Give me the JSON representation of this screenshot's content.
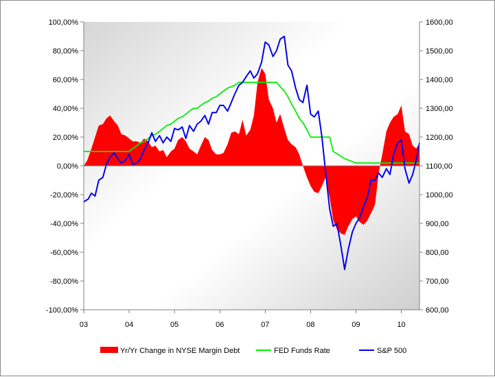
{
  "chart_data": {
    "type": "area+line",
    "title": "",
    "xlabel": "",
    "ylabel": "",
    "x_tick_labels": [
      "03",
      "04",
      "05",
      "06",
      "07",
      "08",
      "09",
      "10"
    ],
    "x_range": [
      2003.0,
      2010.4
    ],
    "y_left": {
      "range": [
        -100,
        100
      ],
      "step": 20,
      "tick_labels": [
        "100,00%",
        "80,00%",
        "60,00%",
        "40,00%",
        "20,00%",
        "0,00%",
        "-20,00%",
        "-40,00%",
        "-60,00%",
        "-80,00%",
        "-100,00%"
      ]
    },
    "y_right": {
      "range": [
        600,
        1600
      ],
      "step": 100,
      "tick_labels": [
        "1600,00",
        "1500,00",
        "1400,00",
        "1300,00",
        "1200,00",
        "1100,00",
        "1000,00",
        "900,00",
        "800,00",
        "700,00",
        "600,00"
      ]
    },
    "grid": false,
    "legend_position": "bottom",
    "series": [
      {
        "name": "Yr/Yr Change in NYSE Margin Debt",
        "kind": "area",
        "axis": "left",
        "color": "#ff0000",
        "x": [
          2003.0,
          2003.08,
          2003.17,
          2003.25,
          2003.33,
          2003.42,
          2003.5,
          2003.58,
          2003.67,
          2003.75,
          2003.83,
          2003.92,
          2004.0,
          2004.08,
          2004.17,
          2004.25,
          2004.33,
          2004.42,
          2004.5,
          2004.58,
          2004.67,
          2004.75,
          2004.83,
          2004.92,
          2005.0,
          2005.08,
          2005.17,
          2005.25,
          2005.33,
          2005.42,
          2005.5,
          2005.58,
          2005.67,
          2005.75,
          2005.83,
          2005.92,
          2006.0,
          2006.08,
          2006.17,
          2006.25,
          2006.33,
          2006.42,
          2006.5,
          2006.58,
          2006.67,
          2006.75,
          2006.83,
          2006.92,
          2007.0,
          2007.08,
          2007.17,
          2007.25,
          2007.33,
          2007.42,
          2007.5,
          2007.58,
          2007.67,
          2007.75,
          2007.83,
          2007.92,
          2008.0,
          2008.08,
          2008.17,
          2008.25,
          2008.33,
          2008.42,
          2008.5,
          2008.58,
          2008.67,
          2008.75,
          2008.83,
          2008.92,
          2009.0,
          2009.08,
          2009.17,
          2009.25,
          2009.33,
          2009.42,
          2009.5,
          2009.58,
          2009.67,
          2009.75,
          2009.83,
          2009.92,
          2010.0,
          2010.08,
          2010.17,
          2010.25,
          2010.33,
          2010.4
        ],
        "values": [
          0,
          4,
          12,
          20,
          28,
          29,
          33,
          35,
          31,
          28,
          22,
          21,
          19,
          17,
          17,
          16,
          19,
          17,
          13,
          14,
          10,
          11,
          6,
          10,
          12,
          18,
          20,
          17,
          12,
          10,
          8,
          14,
          20,
          18,
          11,
          8,
          8,
          9,
          15,
          23,
          24,
          22,
          32,
          21,
          25,
          35,
          58,
          68,
          64,
          46,
          40,
          30,
          36,
          26,
          18,
          15,
          13,
          8,
          0,
          -8,
          -14,
          -18,
          -19,
          -14,
          -8,
          -22,
          -38,
          -44,
          -47,
          -48,
          -42,
          -37,
          -35,
          -39,
          -41,
          -38,
          -33,
          -27,
          -5,
          8,
          24,
          30,
          34,
          36,
          42,
          24,
          22,
          14,
          12,
          16
        ]
      },
      {
        "name": "FED Funds Rate",
        "kind": "line",
        "axis": "left",
        "color": "#00ee00",
        "x": [
          2003.0,
          2003.5,
          2003.9,
          2004.0,
          2004.08,
          2004.17,
          2004.25,
          2004.33,
          2004.42,
          2004.5,
          2004.58,
          2004.67,
          2004.75,
          2004.83,
          2004.92,
          2005.0,
          2005.08,
          2005.17,
          2005.25,
          2005.33,
          2005.42,
          2005.5,
          2005.58,
          2005.67,
          2005.75,
          2005.83,
          2005.92,
          2006.0,
          2006.08,
          2006.17,
          2006.25,
          2006.33,
          2006.42,
          2006.5,
          2007.0,
          2007.2,
          2007.25,
          2007.33,
          2007.42,
          2007.5,
          2007.58,
          2007.67,
          2007.75,
          2007.83,
          2007.92,
          2008.0,
          2008.25,
          2008.42,
          2008.5,
          2008.75,
          2009.0,
          2009.5,
          2010.0,
          2010.4
        ],
        "values": [
          10,
          10,
          10,
          10,
          12,
          14,
          16,
          17,
          19,
          21,
          22,
          24,
          26,
          28,
          29,
          31,
          33,
          34,
          36,
          38,
          40,
          40,
          42,
          44,
          45,
          47,
          48,
          50,
          52,
          54,
          55,
          56,
          58,
          58,
          58,
          58,
          58,
          55,
          52,
          48,
          43,
          38,
          33,
          30,
          25,
          20,
          20,
          20,
          10,
          5,
          2,
          2,
          2,
          2
        ]
      },
      {
        "name": "S&P 500",
        "kind": "line",
        "axis": "right",
        "color": "#0000ee",
        "x": [
          2003.0,
          2003.1,
          2003.17,
          2003.25,
          2003.33,
          2003.42,
          2003.5,
          2003.58,
          2003.67,
          2003.75,
          2003.83,
          2003.92,
          2004.0,
          2004.08,
          2004.17,
          2004.25,
          2004.33,
          2004.42,
          2004.5,
          2004.58,
          2004.67,
          2004.75,
          2004.83,
          2004.92,
          2005.0,
          2005.08,
          2005.17,
          2005.25,
          2005.33,
          2005.42,
          2005.5,
          2005.58,
          2005.67,
          2005.75,
          2005.83,
          2005.92,
          2006.0,
          2006.08,
          2006.17,
          2006.25,
          2006.33,
          2006.42,
          2006.5,
          2006.58,
          2006.67,
          2006.75,
          2006.83,
          2006.92,
          2007.0,
          2007.08,
          2007.17,
          2007.25,
          2007.33,
          2007.42,
          2007.5,
          2007.58,
          2007.67,
          2007.75,
          2007.83,
          2007.92,
          2008.0,
          2008.08,
          2008.17,
          2008.25,
          2008.33,
          2008.42,
          2008.5,
          2008.58,
          2008.67,
          2008.75,
          2008.83,
          2008.92,
          2009.0,
          2009.08,
          2009.17,
          2009.25,
          2009.33,
          2009.42,
          2009.5,
          2009.58,
          2009.67,
          2009.75,
          2009.83,
          2009.92,
          2010.0,
          2010.08,
          2010.17,
          2010.25,
          2010.33,
          2010.4
        ],
        "values": [
          975,
          985,
          1005,
          995,
          1050,
          1060,
          1105,
          1130,
          1145,
          1125,
          1110,
          1120,
          1140,
          1105,
          1110,
          1125,
          1155,
          1180,
          1215,
          1185,
          1205,
          1180,
          1200,
          1185,
          1230,
          1225,
          1235,
          1195,
          1240,
          1220,
          1245,
          1255,
          1275,
          1245,
          1285,
          1285,
          1310,
          1310,
          1290,
          1320,
          1350,
          1380,
          1390,
          1410,
          1430,
          1405,
          1420,
          1460,
          1530,
          1520,
          1480,
          1500,
          1540,
          1550,
          1450,
          1430,
          1370,
          1330,
          1320,
          1380,
          1280,
          1270,
          1290,
          1200,
          1080,
          950,
          890,
          900,
          820,
          740,
          810,
          870,
          900,
          920,
          960,
          990,
          1050,
          1050,
          1075,
          1060,
          1090,
          1070,
          1140,
          1180,
          1190,
          1090,
          1040,
          1070,
          1120,
          1180
        ]
      }
    ]
  }
}
